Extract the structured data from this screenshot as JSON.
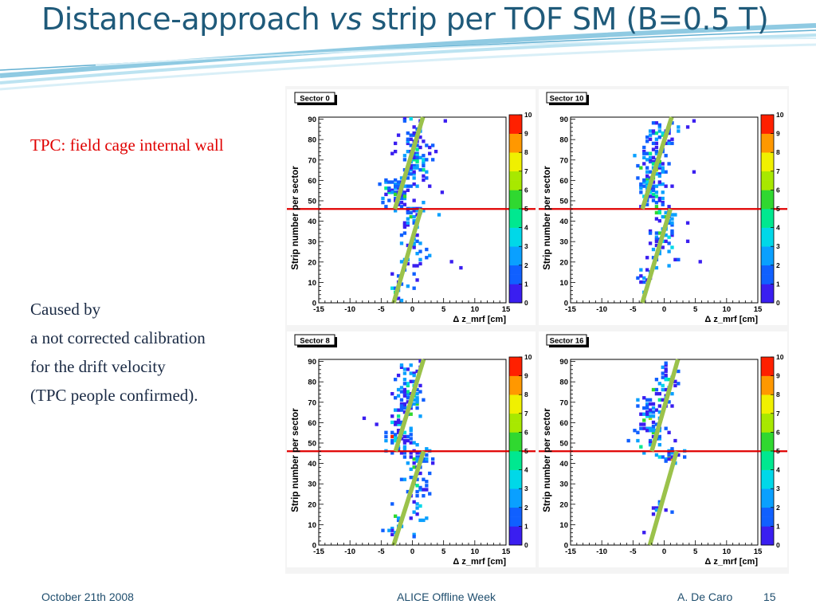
{
  "slide": {
    "title_before": "Distance-approach ",
    "title_italic": "vs",
    "title_after": " strip per TOF SM (B=0.5 T)",
    "note": "TPC: field cage internal wall",
    "explanation": [
      "Caused by",
      "a not corrected calibration",
      "for the drift velocity",
      "(TPC people confirmed)."
    ],
    "footer": {
      "date": "October 21th 2008",
      "event": "ALICE Offline Week",
      "author": "A. De Caro",
      "page": "15"
    },
    "colors": {
      "title": "#1f5a7a",
      "note": "#e00000",
      "threshold_line": "#e00000",
      "fit_line": "#9bc24b"
    }
  },
  "chart_data": [
    {
      "type": "heatmap",
      "title": "Sector 0",
      "xlabel": "Δ z_mrf [cm]",
      "ylabel": "Strip number per sector",
      "xlim": [
        -15,
        15
      ],
      "ylim": [
        0,
        91
      ],
      "x_ticks": [
        -15,
        -10,
        -5,
        0,
        5,
        10,
        15
      ],
      "y_ticks": [
        0,
        10,
        20,
        30,
        40,
        50,
        60,
        70,
        80,
        90
      ],
      "colorbar_range": [
        0,
        10
      ],
      "colorbar_ticks": [
        0,
        1,
        2,
        3,
        4,
        5,
        6,
        7,
        8,
        9,
        10
      ],
      "horizontal_line_y": 46,
      "fit_segments": [
        {
          "x": [
            -2.8,
            1.7
          ],
          "y": [
            46,
            91
          ]
        },
        {
          "x": [
            -3.0,
            1.4
          ],
          "y": [
            0,
            46
          ]
        }
      ],
      "clusters": [
        {
          "x": 0.5,
          "y": 70,
          "sx": 1.1,
          "sy": 6,
          "n": 80
        },
        {
          "x": -2.6,
          "y": 54,
          "sx": 1.2,
          "sy": 4,
          "n": 70
        },
        {
          "x": 0.3,
          "y": 85,
          "sx": 1.2,
          "sy": 3,
          "n": 16
        },
        {
          "x": 0.0,
          "y": 28,
          "sx": 1.0,
          "sy": 9,
          "n": 45
        },
        {
          "x": 0.8,
          "y": 45,
          "sx": 1.4,
          "sy": 1.2,
          "n": 15
        },
        {
          "x": -2.4,
          "y": 10,
          "sx": 0.5,
          "sy": 5,
          "n": 12
        }
      ],
      "outliers": [
        [
          5.2,
          89
        ],
        [
          4.8,
          54
        ],
        [
          7.8,
          17
        ],
        [
          6.2,
          20
        ],
        [
          2.5,
          58
        ]
      ]
    },
    {
      "type": "heatmap",
      "title": "Sector 10",
      "xlabel": "Δ z_mrf [cm]",
      "ylabel": "Strip number per sector",
      "xlim": [
        -15,
        15
      ],
      "ylim": [
        0,
        91
      ],
      "x_ticks": [
        -15,
        -10,
        -5,
        0,
        5,
        10,
        15
      ],
      "y_ticks": [
        0,
        10,
        20,
        30,
        40,
        50,
        60,
        70,
        80,
        90
      ],
      "colorbar_range": [
        0,
        10
      ],
      "colorbar_ticks": [
        0,
        1,
        2,
        3,
        4,
        5,
        6,
        7,
        8,
        9,
        10
      ],
      "horizontal_line_y": 46,
      "fit_segments": [
        {
          "x": [
            -3.5,
            1.2
          ],
          "y": [
            46,
            91
          ]
        },
        {
          "x": [
            -3.5,
            1.0
          ],
          "y": [
            0,
            46
          ]
        }
      ],
      "clusters": [
        {
          "x": -1.5,
          "y": 72,
          "sx": 1.3,
          "sy": 8,
          "n": 85
        },
        {
          "x": -2.3,
          "y": 55,
          "sx": 1.2,
          "sy": 4,
          "n": 60
        },
        {
          "x": -0.5,
          "y": 85,
          "sx": 1.2,
          "sy": 3,
          "n": 18
        },
        {
          "x": -0.5,
          "y": 32,
          "sx": 1.2,
          "sy": 8,
          "n": 50
        },
        {
          "x": 0.8,
          "y": 44,
          "sx": 1.3,
          "sy": 2,
          "n": 18
        },
        {
          "x": -3.0,
          "y": 12,
          "sx": 0.8,
          "sy": 6,
          "n": 14
        }
      ],
      "outliers": [
        [
          4.5,
          89
        ],
        [
          3.5,
          86
        ],
        [
          4.8,
          64
        ],
        [
          5.5,
          20
        ],
        [
          3.5,
          30
        ]
      ]
    },
    {
      "type": "heatmap",
      "title": "Sector 8",
      "xlabel": "Δ z_mrf [cm]",
      "ylabel": "Strip number per sector",
      "xlim": [
        -15,
        15
      ],
      "ylim": [
        0,
        91
      ],
      "x_ticks": [
        -15,
        -10,
        -5,
        0,
        5,
        10,
        15
      ],
      "y_ticks": [
        0,
        10,
        20,
        30,
        40,
        50,
        60,
        70,
        80,
        90
      ],
      "colorbar_range": [
        0,
        10
      ],
      "colorbar_ticks": [
        0,
        1,
        2,
        3,
        4,
        5,
        6,
        7,
        8,
        9,
        10
      ],
      "horizontal_line_y": 46,
      "fit_segments": [
        {
          "x": [
            -2.7,
            1.8
          ],
          "y": [
            46,
            91
          ]
        },
        {
          "x": [
            -3.0,
            1.8
          ],
          "y": [
            0,
            46
          ]
        }
      ],
      "clusters": [
        {
          "x": -0.8,
          "y": 70,
          "sx": 1.2,
          "sy": 8,
          "n": 70
        },
        {
          "x": -2.2,
          "y": 53,
          "sx": 1.2,
          "sy": 4,
          "n": 50
        },
        {
          "x": 0.0,
          "y": 84,
          "sx": 1.2,
          "sy": 4,
          "n": 18
        },
        {
          "x": 0.5,
          "y": 30,
          "sx": 1.0,
          "sy": 10,
          "n": 55
        },
        {
          "x": 1.2,
          "y": 44,
          "sx": 1.2,
          "sy": 1.5,
          "n": 14
        },
        {
          "x": -2.8,
          "y": 10,
          "sx": 0.6,
          "sy": 5,
          "n": 14
        }
      ],
      "outliers": [
        [
          -8.0,
          62
        ],
        [
          -5.8,
          59
        ],
        [
          -3.5,
          63
        ],
        [
          3.0,
          40
        ],
        [
          -0.5,
          13
        ]
      ]
    },
    {
      "type": "heatmap",
      "title": "Sector 16",
      "xlabel": "Δ z_mrf [cm]",
      "ylabel": "Strip number per sector",
      "xlim": [
        -15,
        15
      ],
      "ylim": [
        0,
        91
      ],
      "x_ticks": [
        -15,
        -10,
        -5,
        0,
        5,
        10,
        15
      ],
      "y_ticks": [
        0,
        10,
        20,
        30,
        40,
        50,
        60,
        70,
        80,
        90
      ],
      "colorbar_range": [
        0,
        10
      ],
      "colorbar_ticks": [
        0,
        1,
        2,
        3,
        4,
        5,
        6,
        7,
        8,
        9,
        10
      ],
      "horizontal_line_y": 46,
      "fit_segments": [
        {
          "x": [
            -2.0,
            2.2
          ],
          "y": [
            46,
            91
          ]
        },
        {
          "x": [
            -2.3,
            2.0
          ],
          "y": [
            0,
            46
          ]
        }
      ],
      "clusters": [
        {
          "x": -2.2,
          "y": 60,
          "sx": 1.3,
          "sy": 6,
          "n": 70
        },
        {
          "x": 0.0,
          "y": 78,
          "sx": 1.2,
          "sy": 6,
          "n": 30
        },
        {
          "x": 0.8,
          "y": 44,
          "sx": 1.0,
          "sy": 1.5,
          "n": 28
        },
        {
          "x": 0.5,
          "y": 85,
          "sx": 1.0,
          "sy": 3,
          "n": 12
        },
        {
          "x": -0.5,
          "y": 17,
          "sx": 0.8,
          "sy": 2,
          "n": 10
        }
      ],
      "outliers": [
        [
          1.8,
          51
        ],
        [
          -3.5,
          6
        ],
        [
          0.5,
          55
        ],
        [
          -1.0,
          68
        ]
      ]
    }
  ]
}
